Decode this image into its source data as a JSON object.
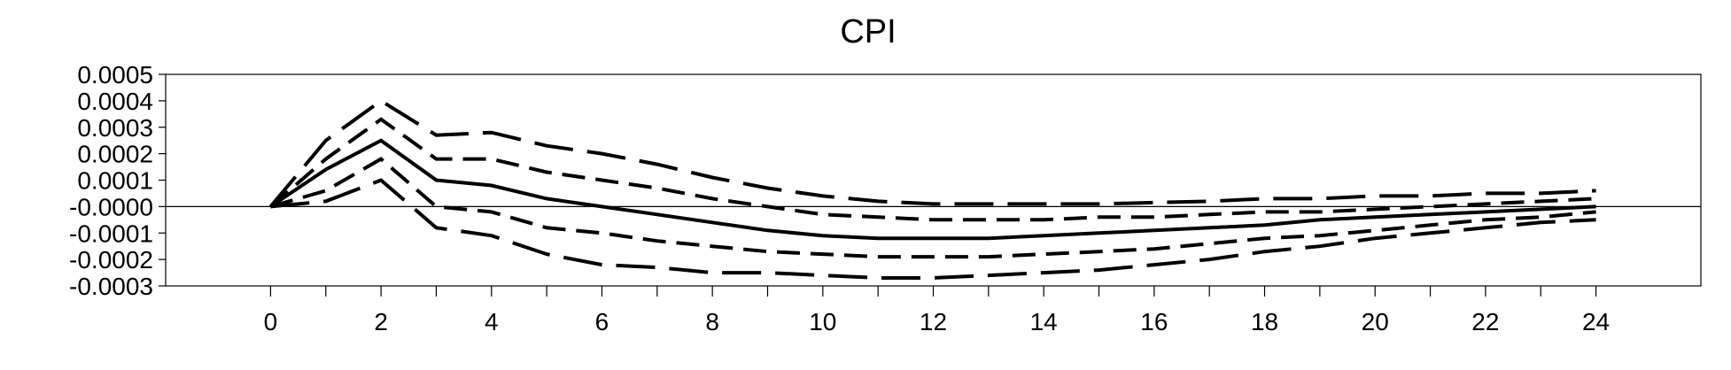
{
  "chart_data": {
    "type": "line",
    "title": "CPI",
    "xlabel": "",
    "ylabel": "",
    "x": [
      0,
      1,
      2,
      3,
      4,
      5,
      6,
      7,
      8,
      9,
      10,
      11,
      12,
      13,
      14,
      15,
      16,
      17,
      18,
      19,
      20,
      21,
      22,
      23,
      24
    ],
    "xlim": [
      -1.9,
      25.9
    ],
    "ylim": [
      -0.0003,
      0.0005
    ],
    "x_ticks": [
      0,
      2,
      4,
      6,
      8,
      10,
      12,
      14,
      16,
      18,
      20,
      22,
      24
    ],
    "y_ticks": [
      -0.0003,
      -0.0002,
      -0.0001,
      0,
      0.0001,
      0.0002,
      0.0003,
      0.0004,
      0.0005
    ],
    "y_tick_labels": [
      "-0.0003",
      "-0.0002",
      "-0.0001",
      "-0.0000",
      "0.0001",
      "0.0002",
      "0.0003",
      "0.0004",
      "0.0005"
    ],
    "zero_line": true,
    "grid": false,
    "legend": "none",
    "series": [
      {
        "style": "solid",
        "values": [
          0,
          0.00014,
          0.00025,
          0.0001,
          8e-05,
          3e-05,
          0,
          -3e-05,
          -6e-05,
          -9e-05,
          -0.00011,
          -0.00012,
          -0.00012,
          -0.00012,
          -0.00011,
          -0.0001,
          -9e-05,
          -8e-05,
          -7e-05,
          -5e-05,
          -4e-05,
          -3e-05,
          -2e-05,
          -1e-05,
          0
        ]
      },
      {
        "style": "short-dash",
        "values": [
          0,
          0.00018,
          0.00033,
          0.00018,
          0.00018,
          0.00013,
          0.0001,
          7e-05,
          3e-05,
          0.0,
          -3e-05,
          -4e-05,
          -5e-05,
          -5e-05,
          -5e-05,
          -4e-05,
          -4e-05,
          -3e-05,
          -2e-05,
          -2e-05,
          -1e-05,
          0,
          1e-05,
          2e-05,
          3e-05
        ]
      },
      {
        "style": "short-dash",
        "values": [
          0,
          6e-05,
          0.00018,
          0.0,
          -2e-05,
          -8e-05,
          -0.0001,
          -0.00013,
          -0.00015,
          -0.00017,
          -0.00018,
          -0.00019,
          -0.00019,
          -0.00019,
          -0.00018,
          -0.00017,
          -0.00016,
          -0.00014,
          -0.00012,
          -0.00011,
          -9e-05,
          -7e-05,
          -5e-05,
          -4e-05,
          -2e-05
        ]
      },
      {
        "style": "long-dash",
        "values": [
          0,
          0.00025,
          0.0004,
          0.00027,
          0.00028,
          0.00023,
          0.0002,
          0.00016,
          0.00011,
          7e-05,
          4e-05,
          2e-05,
          1e-05,
          1e-05,
          1e-05,
          1e-05,
          1.5e-05,
          2e-05,
          3e-05,
          3e-05,
          4e-05,
          4e-05,
          5e-05,
          5e-05,
          6e-05
        ]
      },
      {
        "style": "long-dash",
        "values": [
          0,
          2e-05,
          0.0001,
          -8e-05,
          -0.00011,
          -0.00018,
          -0.00022,
          -0.00023,
          -0.00025,
          -0.00025,
          -0.00026,
          -0.00027,
          -0.00027,
          -0.00026,
          -0.00025,
          -0.00024,
          -0.00022,
          -0.0002,
          -0.00017,
          -0.00015,
          -0.00012,
          -0.0001,
          -8e-05,
          -6e-05,
          -5e-05
        ]
      }
    ]
  }
}
